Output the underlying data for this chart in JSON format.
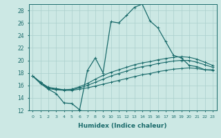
{
  "xlabel": "Humidex (Indice chaleur)",
  "bg_color": "#cce8e4",
  "line_color": "#1a6b6b",
  "grid_color": "#aacfcc",
  "xlim": [
    -0.5,
    23.5
  ],
  "ylim": [
    12,
    29
  ],
  "yticks": [
    12,
    14,
    16,
    18,
    20,
    22,
    24,
    26,
    28
  ],
  "xticks": [
    0,
    1,
    2,
    3,
    4,
    5,
    6,
    7,
    8,
    9,
    10,
    11,
    12,
    13,
    14,
    15,
    16,
    17,
    18,
    19,
    20,
    21,
    22,
    23
  ],
  "series": [
    [
      17.5,
      16.3,
      15.4,
      14.7,
      13.2,
      13.1,
      12.1,
      18.4,
      20.4,
      18.0,
      26.2,
      26.0,
      27.2,
      28.5,
      29.0,
      26.3,
      25.2,
      23.0,
      20.8,
      20.4,
      19.2,
      19.0,
      18.5,
      18.5
    ],
    [
      17.5,
      16.5,
      15.5,
      15.3,
      15.2,
      15.2,
      15.4,
      15.6,
      15.9,
      16.2,
      16.5,
      16.8,
      17.1,
      17.4,
      17.7,
      17.9,
      18.2,
      18.4,
      18.6,
      18.7,
      18.8,
      18.7,
      18.5,
      18.4
    ],
    [
      17.5,
      16.5,
      15.6,
      15.4,
      15.3,
      15.3,
      15.6,
      16.0,
      16.5,
      17.0,
      17.5,
      17.9,
      18.3,
      18.7,
      19.0,
      19.2,
      19.5,
      19.7,
      19.9,
      20.0,
      20.0,
      19.7,
      19.3,
      18.9
    ],
    [
      17.5,
      16.5,
      15.7,
      15.5,
      15.3,
      15.4,
      15.8,
      16.3,
      17.0,
      17.6,
      18.1,
      18.5,
      18.9,
      19.3,
      19.6,
      19.8,
      20.1,
      20.3,
      20.5,
      20.6,
      20.5,
      20.2,
      19.7,
      19.2
    ]
  ],
  "linewidths": [
    0.9,
    0.8,
    0.8,
    0.8
  ],
  "marker_sizes": [
    2.2,
    2.2,
    2.2,
    2.2
  ]
}
